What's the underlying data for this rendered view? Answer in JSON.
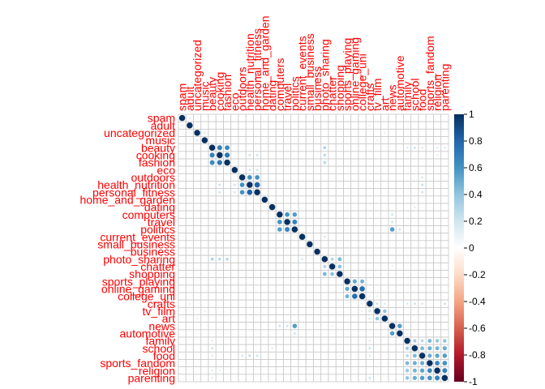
{
  "chart_data": {
    "type": "heatmap",
    "subtype": "correlation-matrix",
    "method": "circle",
    "lower_triangle_blank": false,
    "labels": [
      "spam",
      "adult",
      "uncategorized",
      "music",
      "beauty",
      "cooking",
      "fashion",
      "eco",
      "outdoors",
      "health_nutrition",
      "personal_fitness",
      "home_and_garden",
      "dating",
      "computers",
      "travel",
      "politics",
      "current_events",
      "small_business",
      "business",
      "photo_sharing",
      "chatter",
      "shopping",
      "sports_playing",
      "online_gaming",
      "college_uni",
      "crafts",
      "tv_film",
      "art",
      "news",
      "automotive",
      "family",
      "school",
      "food",
      "sports_fandom",
      "religion",
      "parenting"
    ],
    "label_color": "#ff0000",
    "colorbar": {
      "range": [
        -1,
        1
      ],
      "ticks": [
        1,
        0.8,
        0.6,
        0.4,
        0.2,
        0,
        -0.2,
        -0.4,
        -0.6,
        -0.8,
        -1
      ],
      "tick_labels": [
        "1",
        "0.8",
        "0.6",
        "0.4",
        "0.2",
        "0",
        "-0.2",
        "-0.4",
        "-0.6",
        "-0.8",
        "-1"
      ],
      "colors_high_to_low": [
        "#053061",
        "#2166ac",
        "#4393c3",
        "#92c5de",
        "#d1e5f0",
        "#ffffff",
        "#fddbc7",
        "#f4a582",
        "#d6604d",
        "#b2182b",
        "#67001f"
      ]
    },
    "correlations": [
      [
        "spam",
        "adult",
        0.15
      ],
      [
        "adult",
        "uncategorized",
        0.1
      ],
      [
        "spam",
        "uncategorized",
        0.08
      ],
      [
        "uncategorized",
        "music",
        0.15
      ],
      [
        "beauty",
        "cooking",
        0.68
      ],
      [
        "beauty",
        "fashion",
        0.64
      ],
      [
        "cooking",
        "fashion",
        0.72
      ],
      [
        "beauty",
        "photo_sharing",
        0.3
      ],
      [
        "cooking",
        "photo_sharing",
        0.26
      ],
      [
        "fashion",
        "photo_sharing",
        0.28
      ],
      [
        "beauty",
        "school",
        0.2
      ],
      [
        "beauty",
        "food",
        0.16
      ],
      [
        "beauty",
        "religion",
        0.14
      ],
      [
        "beauty",
        "parenting",
        0.15
      ],
      [
        "outdoors",
        "health_nutrition",
        0.61
      ],
      [
        "outdoors",
        "personal_fitness",
        0.6
      ],
      [
        "health_nutrition",
        "personal_fitness",
        0.81
      ],
      [
        "health_nutrition",
        "eco",
        0.2
      ],
      [
        "personal_fitness",
        "eco",
        0.18
      ],
      [
        "cooking",
        "health_nutrition",
        0.2
      ],
      [
        "cooking",
        "personal_fitness",
        0.2
      ],
      [
        "health_nutrition",
        "food",
        0.22
      ],
      [
        "personal_fitness",
        "food",
        0.2
      ],
      [
        "outdoors",
        "food",
        0.18
      ],
      [
        "computers",
        "travel",
        0.6
      ],
      [
        "computers",
        "politics",
        0.56
      ],
      [
        "travel",
        "politics",
        0.66
      ],
      [
        "politics",
        "news",
        0.56
      ],
      [
        "computers",
        "news",
        0.2
      ],
      [
        "travel",
        "news",
        0.2
      ],
      [
        "politics",
        "automotive",
        0.2
      ],
      [
        "current_events",
        "photo_sharing",
        0.18
      ],
      [
        "photo_sharing",
        "chatter",
        0.3
      ],
      [
        "photo_sharing",
        "shopping",
        0.45
      ],
      [
        "chatter",
        "shopping",
        0.42
      ],
      [
        "sports_playing",
        "online_gaming",
        0.51
      ],
      [
        "sports_playing",
        "college_uni",
        0.47
      ],
      [
        "online_gaming",
        "college_uni",
        0.77
      ],
      [
        "news",
        "automotive",
        0.56
      ],
      [
        "family",
        "school",
        0.35
      ],
      [
        "family",
        "food",
        0.28
      ],
      [
        "family",
        "sports_fandom",
        0.45
      ],
      [
        "family",
        "religion",
        0.38
      ],
      [
        "family",
        "parenting",
        0.4
      ],
      [
        "school",
        "food",
        0.45
      ],
      [
        "school",
        "sports_fandom",
        0.49
      ],
      [
        "school",
        "religion",
        0.47
      ],
      [
        "school",
        "parenting",
        0.5
      ],
      [
        "food",
        "sports_fandom",
        0.5
      ],
      [
        "food",
        "religion",
        0.53
      ],
      [
        "food",
        "parenting",
        0.56
      ],
      [
        "sports_fandom",
        "religion",
        0.64
      ],
      [
        "sports_fandom",
        "parenting",
        0.6
      ],
      [
        "religion",
        "parenting",
        0.67
      ],
      [
        "crafts",
        "tv_film",
        0.2
      ],
      [
        "crafts",
        "art",
        0.15
      ],
      [
        "tv_film",
        "art",
        0.4
      ],
      [
        "adult",
        "crafts",
        0.12
      ],
      [
        "uncategorized",
        "art",
        0.12
      ],
      [
        "music",
        "tv_film",
        0.12
      ],
      [
        "crafts",
        "school",
        0.2
      ],
      [
        "crafts",
        "food",
        0.18
      ],
      [
        "crafts",
        "parenting",
        0.2
      ],
      [
        "crafts",
        "family",
        0.15
      ],
      [
        "chatter",
        "news",
        0.12
      ],
      [
        "shopping",
        "food",
        0.12
      ],
      [
        "college_uni",
        "crafts",
        0.12
      ],
      [
        "college_uni",
        "tv_film",
        0.12
      ],
      [
        "dating",
        "school",
        0.15
      ],
      [
        "beauty",
        "family",
        0.15
      ],
      [
        "cooking",
        "religion",
        0.12
      ]
    ]
  }
}
